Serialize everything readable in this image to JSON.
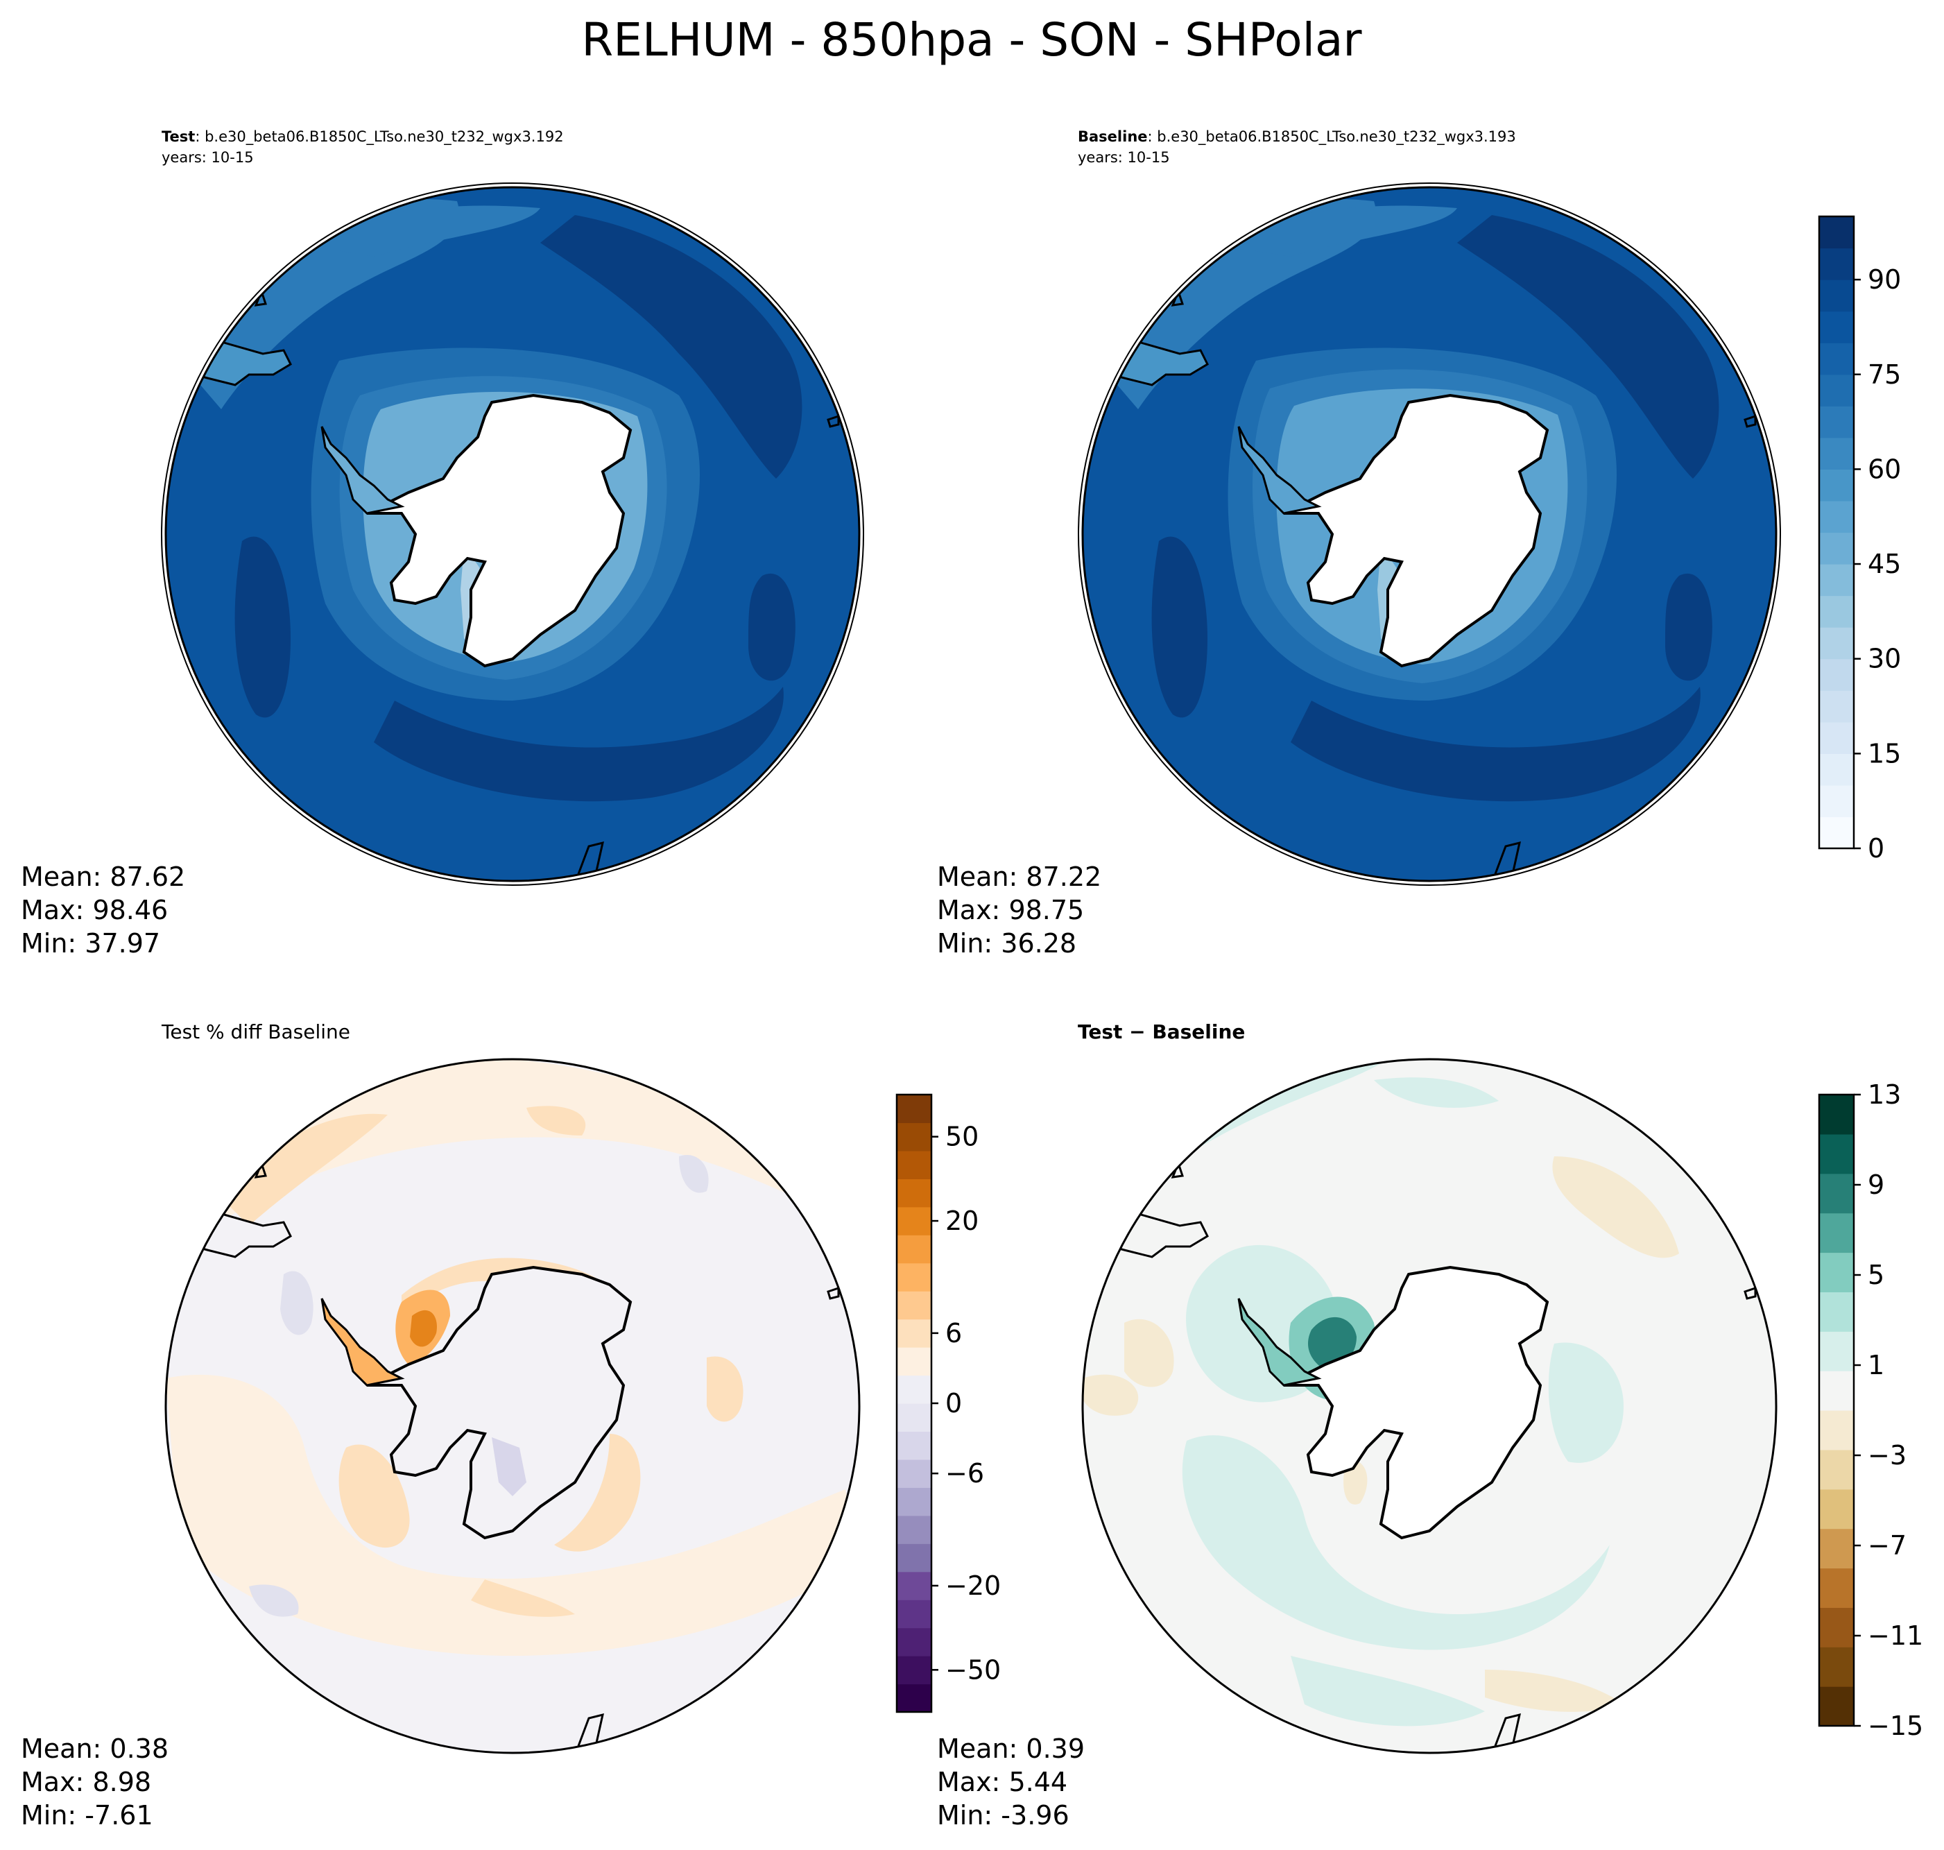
{
  "figure": {
    "title": "RELHUM - 850hpa - SON - SHPolar"
  },
  "panels": [
    {
      "id": "test",
      "header_bold": "Test",
      "header_rest": ": b.e30_beta06.B1850C_LTso.ne30_t232_wgx3.192",
      "years": "years: 10-15",
      "stats": {
        "mean": "Mean: 87.62",
        "max": "Max: 98.46",
        "min": "Min: 37.97"
      }
    },
    {
      "id": "baseline",
      "header_bold": "Baseline",
      "header_rest": ": b.e30_beta06.B1850C_LTso.ne30_t232_wgx3.193",
      "years": "years: 10-15",
      "stats": {
        "mean": "Mean: 87.22",
        "max": "Max: 98.75",
        "min": "Min: 36.28"
      }
    },
    {
      "id": "pctdiff",
      "header": "Test % diff Baseline",
      "stats": {
        "mean": "Mean:  0.38",
        "max": "Max:  8.98",
        "min": "Min: -7.61"
      }
    },
    {
      "id": "diff",
      "header_bold": "Test − Baseline",
      "stats": {
        "mean": "Mean:  0.39",
        "max": "Max:  5.44",
        "min": "Min: -3.96"
      }
    }
  ],
  "colorbars": {
    "main": {
      "ticks": [
        "0",
        "15",
        "30",
        "45",
        "60",
        "75",
        "90"
      ],
      "levels": 20,
      "colors": [
        "#f7fbff",
        "#ecf4fc",
        "#e2eef9",
        "#d7e6f5",
        "#cde0f1",
        "#c1d9ed",
        "#b0d2e7",
        "#9ac8e0",
        "#84bcdb",
        "#6daed5",
        "#5ba3d0",
        "#4896c8",
        "#3a89c1",
        "#2c7bb9",
        "#1f6eb0",
        "#1562a9",
        "#0b559f",
        "#084a91",
        "#083e81",
        "#08306b"
      ]
    },
    "pct": {
      "ticks": [
        "−50",
        "−20",
        "−6",
        "0",
        "6",
        "20",
        "50"
      ],
      "colors": [
        "#2d004b",
        "#3d0f5f",
        "#4e2174",
        "#5e3488",
        "#6e4998",
        "#8073ac",
        "#968dbd",
        "#ada8cf",
        "#c3bfdd",
        "#d8d6ea",
        "#e6e5f1",
        "#eeeef5",
        "#fdf0e1",
        "#fde0bd",
        "#fec98f",
        "#fdb362",
        "#f59d3e",
        "#e5841b",
        "#cf6d0c",
        "#b35806",
        "#9a4b05",
        "#7f3b08"
      ]
    },
    "diff": {
      "ticks": [
        "−15",
        "−11",
        "−7",
        "−3",
        "1",
        "5",
        "9",
        "13"
      ],
      "colors": [
        "#543005",
        "#7a4a0d",
        "#985818",
        "#b8742a",
        "#cf9950",
        "#e0c07c",
        "#ecd7a8",
        "#f5ead2",
        "#f4f5f4",
        "#d7efeb",
        "#b1e2da",
        "#82ccbf",
        "#4fa79b",
        "#278077",
        "#0a6157",
        "#003c30"
      ]
    }
  },
  "map_colors": {
    "ocean_main": "#0b559f",
    "ocean_dark": "#083e81",
    "ocean_light": "#2c7bb9",
    "ocean_mid": "#1f6eb0",
    "pct_bg": "#f3f2f6",
    "pct_orange": "#fde0bd",
    "pct_light": "#fdf0e1",
    "pct_purple": "#e1e1ee",
    "pct_hot": "#e5841b",
    "diff_bg": "#f4f5f4",
    "diff_teal": "#d7efeb",
    "diff_teal2": "#82ccbf",
    "diff_teal3": "#278077",
    "diff_tan": "#f5ead2"
  }
}
